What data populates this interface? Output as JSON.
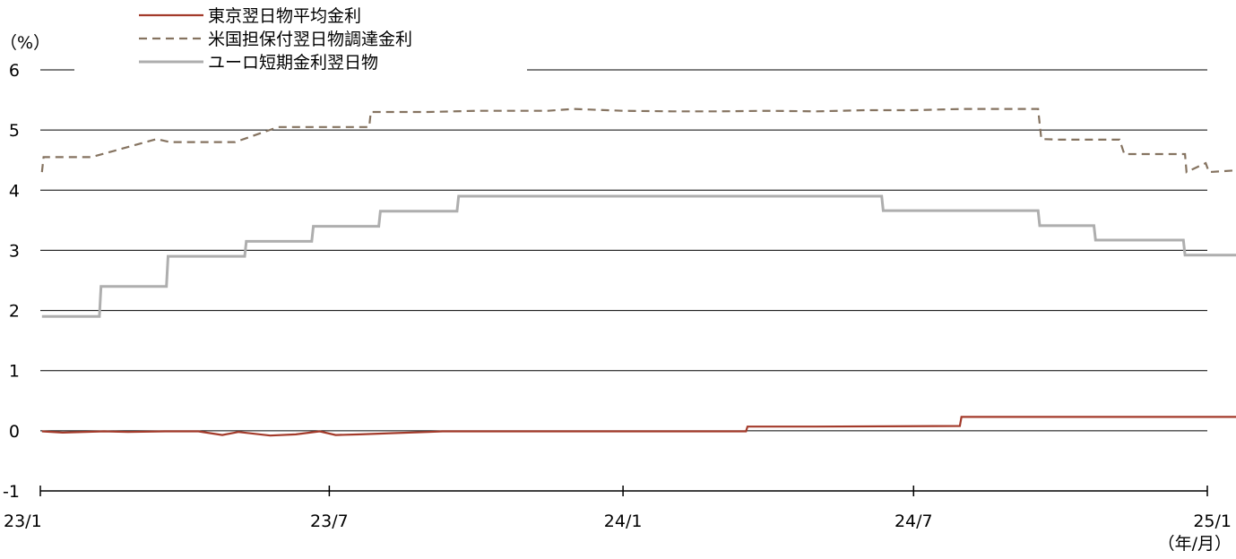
{
  "chart_data": {
    "type": "line",
    "title": "",
    "y_unit": "（%）",
    "x_unit": "（年/月）",
    "ylim": [
      -1,
      6
    ],
    "y_ticks": [
      "-1",
      "0",
      "1",
      "2",
      "3",
      "4",
      "5",
      "6"
    ],
    "y_tick_values": [
      -1,
      0,
      1,
      2,
      3,
      4,
      5,
      6
    ],
    "x_range": [
      "2023-01",
      "2025-01"
    ],
    "x_ticks": [
      "23/1",
      "23/7",
      "24/1",
      "24/7",
      "25/1"
    ],
    "x_tick_values": [
      "2023-01",
      "2023-07",
      "2024-01",
      "2024-07",
      "2025-01"
    ],
    "grid": "horizontal",
    "legend_position": "top-left",
    "series": [
      {
        "name": "東京翌日物平均金利",
        "color": "#a33a2a",
        "style": "solid",
        "x": [
          "2023-01-02",
          "2023-01-15",
          "2023-02-10",
          "2023-02-25",
          "2023-03-20",
          "2023-04-10",
          "2023-04-25",
          "2023-05-05",
          "2023-05-25",
          "2023-06-10",
          "2023-06-25",
          "2023-07-05",
          "2023-07-20",
          "2023-08-10",
          "2023-09-01",
          "2023-09-10",
          "2023-10-01",
          "2023-11-01",
          "2023-12-01",
          "2024-01-01",
          "2024-02-01",
          "2024-03-18",
          "2024-03-19",
          "2024-05-01",
          "2024-07-30",
          "2024-07-31",
          "2024-10-01",
          "2024-12-01",
          "2025-01-23",
          "2025-01-24",
          "2025-01-31"
        ],
        "values": [
          -0.01,
          -0.03,
          -0.01,
          -0.02,
          -0.01,
          -0.01,
          -0.07,
          -0.02,
          -0.08,
          -0.06,
          -0.01,
          -0.07,
          -0.06,
          -0.04,
          -0.02,
          -0.01,
          -0.01,
          -0.01,
          -0.01,
          -0.01,
          -0.01,
          -0.01,
          0.07,
          0.07,
          0.08,
          0.23,
          0.23,
          0.23,
          0.23,
          0.48,
          0.48
        ]
      },
      {
        "name": "米国担保付翌日物調達金利",
        "color": "#857360",
        "style": "dashed",
        "x": [
          "2023-01-02",
          "2023-01-03",
          "2023-02-01",
          "2023-02-02",
          "2023-03-15",
          "2023-03-23",
          "2023-04-10",
          "2023-05-03",
          "2023-05-30",
          "2023-06-15",
          "2023-07-26",
          "2023-07-27",
          "2023-09-01",
          "2023-10-01",
          "2023-11-15",
          "2023-12-01",
          "2024-01-01",
          "2024-02-01",
          "2024-03-01",
          "2024-04-01",
          "2024-05-01",
          "2024-06-01",
          "2024-07-01",
          "2024-08-01",
          "2024-09-17",
          "2024-09-19",
          "2024-10-01",
          "2024-11-07",
          "2024-11-10",
          "2024-12-01",
          "2024-12-18",
          "2024-12-19",
          "2024-12-31",
          "2025-01-02",
          "2025-01-31"
        ],
        "values": [
          4.3,
          4.55,
          4.55,
          4.55,
          4.85,
          4.8,
          4.8,
          4.8,
          5.05,
          5.05,
          5.05,
          5.3,
          5.3,
          5.32,
          5.32,
          5.35,
          5.32,
          5.31,
          5.31,
          5.32,
          5.31,
          5.33,
          5.33,
          5.35,
          5.35,
          4.85,
          4.84,
          4.84,
          4.6,
          4.6,
          4.6,
          4.3,
          4.45,
          4.3,
          4.35
        ]
      },
      {
        "name": "ユーロ短期金利翌日物",
        "color": "#aeaeae",
        "style": "solid",
        "x": [
          "2023-01-02",
          "2023-02-07",
          "2023-02-08",
          "2023-03-21",
          "2023-03-22",
          "2023-05-09",
          "2023-05-10",
          "2023-06-20",
          "2023-06-21",
          "2023-08-01",
          "2023-08-02",
          "2023-09-19",
          "2023-09-20",
          "2024-06-11",
          "2024-06-12",
          "2024-09-17",
          "2024-09-18",
          "2024-10-22",
          "2024-10-23",
          "2024-12-17",
          "2024-12-18",
          "2025-01-31"
        ],
        "values": [
          1.9,
          1.9,
          2.4,
          2.4,
          2.9,
          2.9,
          3.15,
          3.15,
          3.4,
          3.4,
          3.65,
          3.65,
          3.9,
          3.9,
          3.66,
          3.66,
          3.41,
          3.41,
          3.17,
          3.17,
          2.92,
          2.92
        ]
      }
    ]
  }
}
